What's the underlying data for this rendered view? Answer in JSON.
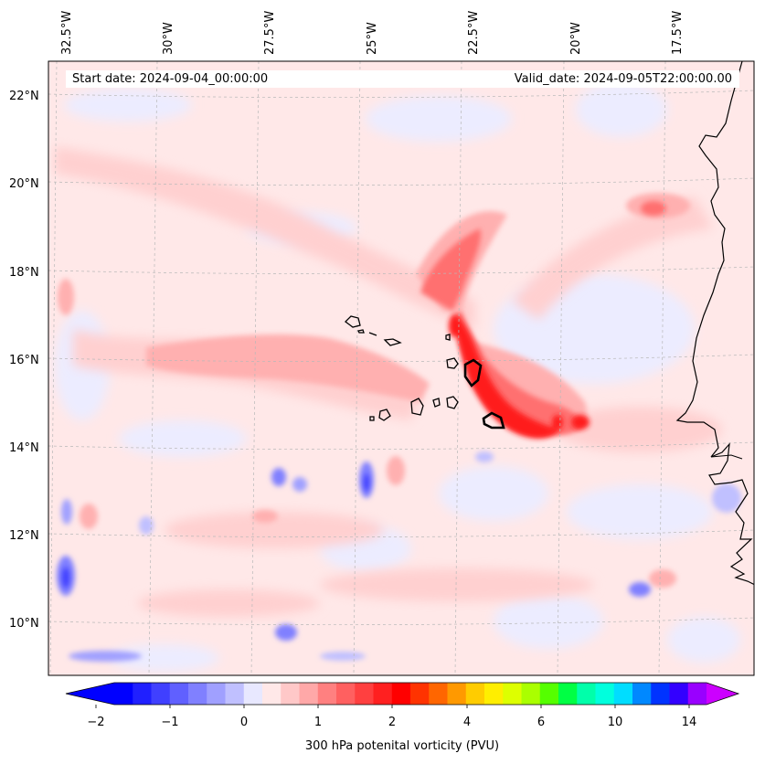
{
  "title": {
    "start_date": "Start date: 2024-09-04_00:00:00",
    "valid_date": "Valid_date: 2024-09-05T22:00:00.00"
  },
  "map": {
    "projection": "rotated pole / lat-lon",
    "extent": {
      "lon_min": -33.0,
      "lon_max": -15.5,
      "lat_min": 8.8,
      "lat_max": 22.8
    },
    "longitude_labels": [
      "32.5°W",
      "30°W",
      "27.5°W",
      "25°W",
      "22.5°W",
      "20°W",
      "17.5°W"
    ],
    "latitude_labels": [
      "22°N",
      "20°N",
      "18°N",
      "16°N",
      "14°N",
      "12°N",
      "10°N"
    ],
    "features": [
      "Cape Verde Islands",
      "West African coastline"
    ]
  },
  "colorbar": {
    "label": "300 hPa potenital vorticity (PVU)",
    "tick_labels": [
      "−2",
      "−1",
      "0",
      "1",
      "2",
      "4",
      "6",
      "10",
      "14"
    ],
    "colors": [
      "#0000ff",
      "#2020ff",
      "#4040ff",
      "#6060ff",
      "#8080ff",
      "#a0a0ff",
      "#c0c0ff",
      "#e8e8ff",
      "#ffe8e8",
      "#ffc8c8",
      "#ffa8a8",
      "#ff8080",
      "#ff6060",
      "#ff4040",
      "#ff2020",
      "#ff0000",
      "#ff3300",
      "#ff6600",
      "#ff9900",
      "#ffcc00",
      "#ffee00",
      "#ddff00",
      "#aaff00",
      "#55ff00",
      "#00ff44",
      "#00ffaa",
      "#00ffdd",
      "#00ddff",
      "#0088ff",
      "#0033ff",
      "#3300ff",
      "#9900ff"
    ],
    "extend_min_color": "#0000ff",
    "extend_max_color": "#cc00ff"
  },
  "chart_data": {
    "type": "heatmap",
    "title": "300 hPa potenital vorticity (PVU)",
    "levels": [
      -2,
      -1.75,
      -1.5,
      -1.25,
      -1,
      -0.75,
      -0.5,
      -0.25,
      0,
      0.25,
      0.5,
      0.75,
      1,
      1.25,
      1.5,
      1.75,
      2,
      2.5,
      3,
      3.5,
      4,
      4.5,
      5,
      5.5,
      6,
      7,
      8,
      9,
      10,
      11,
      12,
      13,
      14
    ],
    "field_summary": [
      {
        "feature": "PV streamer NW of Cape Verde",
        "lon": -21.5,
        "lat": 17.5,
        "value": 1.5
      },
      {
        "feature": "PV maximum near 22°W 15.5°N",
        "lon": -22.0,
        "lat": 15.5,
        "value": 2.0
      },
      {
        "feature": "Elongated band around 20°W 14.5°N",
        "lon": -20.5,
        "lat": 14.6,
        "value": 1.8
      },
      {
        "feature": "Tongue toward 18°W 19.5°N",
        "lon": -18.3,
        "lat": 19.6,
        "value": 1.0
      },
      {
        "feature": "Broad band 31°W–24°W 16°N",
        "lon": -27.5,
        "lat": 16.0,
        "value": 0.6
      },
      {
        "feature": "Negative patch 33°W 11°N",
        "lon": -32.7,
        "lat": 11.1,
        "value": -1.5
      },
      {
        "feature": "Negative patch 25.2°W 13°N",
        "lon": -25.2,
        "lat": 13.0,
        "value": -1.2
      }
    ]
  }
}
